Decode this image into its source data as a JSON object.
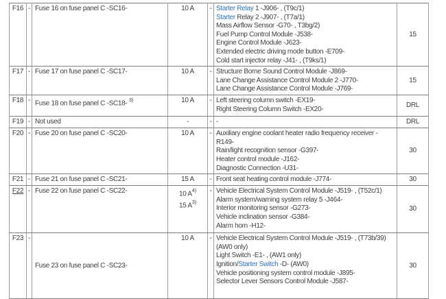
{
  "colors": {
    "link": "#2d73b9",
    "text": "#3d3d3d",
    "border_vertical": "#9d9d9d",
    "border_horizontal": "#7e7e7e"
  },
  "table": {
    "rows": [
      {
        "id": "F16",
        "id_underlined": false,
        "dash_left": "-",
        "description": "Fuse 16 on fuse panel C -SC16-",
        "description_sup": "",
        "description_valign": "top",
        "amperage": [
          {
            "text": "10 A",
            "sup": ""
          }
        ],
        "dash_right": "-",
        "components": [
          [
            {
              "text": "Starter Relay",
              "link": true
            },
            {
              "text": " 1 -J906- , (T9c/1)",
              "link": false
            }
          ],
          [
            {
              "text": "Starter",
              "link": true
            },
            {
              "text": " Relay 2 -J907- , (T7a/1)",
              "link": false
            }
          ],
          [
            {
              "text": "Mass Airflow Sensor -G70- , T3bg/2)",
              "link": false
            }
          ],
          [
            {
              "text": "Fuel Pump Control Module -J538-",
              "link": false
            }
          ],
          [
            {
              "text": "Engine Control Module -J623-",
              "link": false
            }
          ],
          [
            {
              "text": "Extended electric driving mode button -E709-",
              "link": false
            }
          ],
          [
            {
              "text": "Cold start injector relay -J41- , (T9ks/1)",
              "link": false
            }
          ]
        ],
        "value": "15"
      },
      {
        "id": "F17",
        "id_underlined": false,
        "dash_left": "-",
        "description": "Fuse 17 on fuse panel C -SC17-",
        "description_sup": "",
        "description_valign": "top",
        "amperage": [
          {
            "text": "10 A",
            "sup": ""
          }
        ],
        "dash_right": "-",
        "components": [
          [
            {
              "text": "Structure Borne Sound Control Module -J869-",
              "link": false
            }
          ],
          [
            {
              "text": "Lane Change Assistance Control Module 2 -J770-",
              "link": false
            }
          ],
          [
            {
              "text": "Lane Change Assistance Control Module -J769-",
              "link": false
            }
          ]
        ],
        "value": "15"
      },
      {
        "id": "F18",
        "id_underlined": false,
        "dash_left": "-",
        "description": "Fuse 18 on fuse panel C -SC18- ",
        "description_sup": "3)",
        "description_valign": "top",
        "amperage": [
          {
            "text": "10 A",
            "sup": ""
          }
        ],
        "dash_right": "-",
        "components": [
          [
            {
              "text": "Left steering column switch -EX19-",
              "link": false
            }
          ],
          [
            {
              "text": "Right Steering Column Switch -EX20-",
              "link": false
            }
          ]
        ],
        "value": "DRL"
      },
      {
        "id": "F19",
        "id_underlined": false,
        "dash_left": "-",
        "description": "Not used",
        "description_sup": "",
        "description_valign": "top",
        "amperage": [
          {
            "text": "-",
            "sup": ""
          }
        ],
        "dash_right": "-",
        "components": [
          [
            {
              "text": "-",
              "link": false
            }
          ]
        ],
        "value": "DRL"
      },
      {
        "id": "F20",
        "id_underlined": false,
        "dash_left": "-",
        "description": "Fuse 20 on fuse panel C -SC20-",
        "description_sup": "",
        "description_valign": "top",
        "amperage": [
          {
            "text": "10 A",
            "sup": ""
          }
        ],
        "dash_right": "-",
        "components": [
          [
            {
              "text": "Auxiliary engine coolant heater radio frequency receiver -R149-",
              "link": false
            }
          ],
          [
            {
              "text": "Rain/light recognition sensor -G397-",
              "link": false
            }
          ],
          [
            {
              "text": "Heater control module -J162-",
              "link": false
            }
          ],
          [
            {
              "text": "Diagnostic Connection -U31-",
              "link": false
            }
          ]
        ],
        "value": "30"
      },
      {
        "id": "F21",
        "id_underlined": false,
        "dash_left": "-",
        "description": "Fuse 21 on fuse panel C -SC21-",
        "description_sup": "",
        "description_valign": "top",
        "amperage": [
          {
            "text": "15 A",
            "sup": ""
          }
        ],
        "dash_right": "-",
        "components": [
          [
            {
              "text": "Front seat heating control module -J774-",
              "link": false
            }
          ]
        ],
        "value": "30"
      },
      {
        "id": "F22",
        "id_underlined": true,
        "dash_left": "-",
        "description": "Fuse 22 on fuse panel C -SC22-",
        "description_sup": "",
        "description_valign": "top",
        "amperage": [
          {
            "text": "10 A",
            "sup": "4)"
          },
          {
            "text": "15 A",
            "sup": "3)"
          }
        ],
        "dash_right": "-",
        "components": [
          [
            {
              "text": "Vehicle Electrical System Control Module -J519- , (T52c/1)",
              "link": false
            }
          ],
          [
            {
              "text": "Alarm system/warning system relay 5 -J464-",
              "link": false
            }
          ],
          [
            {
              "text": "Interior monitoring sensor -G273-",
              "link": false
            }
          ],
          [
            {
              "text": "Vehicle inclination sensor -G384-",
              "link": false
            }
          ],
          [
            {
              "text": "Alarm horn -H12-",
              "link": false
            }
          ]
        ],
        "value": "30"
      },
      {
        "id": "F23",
        "id_underlined": false,
        "dash_left": "-",
        "description": "Fuse 23 on fuse panel C -SC23-",
        "description_sup": "",
        "description_valign": "middle",
        "amperage": [
          {
            "text": "10 A",
            "sup": ""
          }
        ],
        "dash_right": "-",
        "components": [
          [
            {
              "text": "Vehicle Electrical System Control Module -J519- , (T73b/39) (AW0 only)",
              "link": false
            }
          ],
          [
            {
              "text": "Light Switch -E1- , (AW1 only)",
              "link": false
            }
          ],
          [
            {
              "text": "Ignition/",
              "link": false
            },
            {
              "text": "Starter Switch",
              "link": true
            },
            {
              "text": " -D- (AW0)",
              "link": false
            }
          ],
          [
            {
              "text": "Vehicle positioning system control module -J895-",
              "link": false
            }
          ],
          [
            {
              "text": "Selector Lever Sensors Control Module -J587-",
              "link": false
            }
          ]
        ],
        "value": "30"
      }
    ]
  }
}
